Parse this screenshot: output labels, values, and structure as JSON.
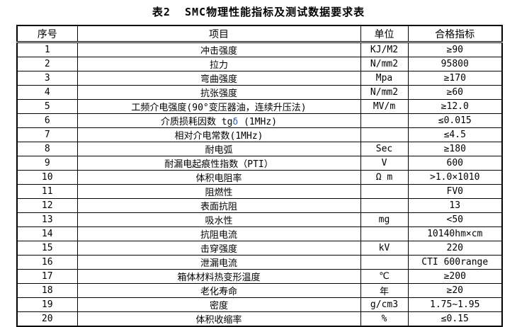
{
  "page": {
    "title": "表2  SMC物理性能指标及测试数据要求表"
  },
  "colors": {
    "border": "#000000",
    "background": "#ffffff",
    "text": "#000000",
    "delta_blue": "#3a5fa8"
  },
  "table": {
    "headers": [
      "序号",
      "项目",
      "单位",
      "合格指标"
    ],
    "rows": [
      {
        "no": "1",
        "item": "冲击强度",
        "unit": "KJ/M2",
        "spec": "≥90"
      },
      {
        "no": "2",
        "item": "拉力",
        "unit": "N/mm2",
        "spec": "95800"
      },
      {
        "no": "3",
        "item": "弯曲强度",
        "unit": "Mpa",
        "spec": "≥170"
      },
      {
        "no": "4",
        "item": "抗张强度",
        "unit": "N/mm2",
        "spec": "≥60"
      },
      {
        "no": "5",
        "item": "工频介电强度(90°变压器油，连续升压法)",
        "unit": "MV/m",
        "spec": "≥12.0"
      },
      {
        "no": "6",
        "item": "介质损耗因数 tgδ (1MHz)",
        "unit": "",
        "spec": "≤0.015"
      },
      {
        "no": "7",
        "item": "相对介电常数(1MHz)",
        "unit": "",
        "spec": "≤4.5"
      },
      {
        "no": "8",
        "item": "耐电弧",
        "unit": "Sec",
        "spec": "≥180"
      },
      {
        "no": "9",
        "item": "耐漏电起痕性指数（PTI）",
        "unit": "V",
        "spec": "600"
      },
      {
        "no": "10",
        "item": "体积电阻率",
        "unit": "Ω m",
        "spec": ">1.0×1010"
      },
      {
        "no": "11",
        "item": "阻燃性",
        "unit": "",
        "spec": "FV0"
      },
      {
        "no": "12",
        "item": "表面抗阻",
        "unit": "",
        "spec": "13"
      },
      {
        "no": "13",
        "item": "吸水性",
        "unit": "mg",
        "spec": "<50"
      },
      {
        "no": "14",
        "item": "抗阻电流",
        "unit": "",
        "spec": "10140hm×cm"
      },
      {
        "no": "15",
        "item": "击穿强度",
        "unit": "kV",
        "spec": "220"
      },
      {
        "no": "16",
        "item": "泄漏电流",
        "unit": "",
        "spec": "CTI 600range"
      },
      {
        "no": "17",
        "item": "箱体材料热变形温度",
        "unit": "℃",
        "spec": "≥200"
      },
      {
        "no": "18",
        "item": "老化寿命",
        "unit": "年",
        "spec": "≥20"
      },
      {
        "no": "19",
        "item": "密度",
        "unit": "g/cm3",
        "spec": "1.75~1.95"
      },
      {
        "no": "20",
        "item": "体积收缩率",
        "unit": "%",
        "spec": "≤0.15"
      }
    ]
  }
}
